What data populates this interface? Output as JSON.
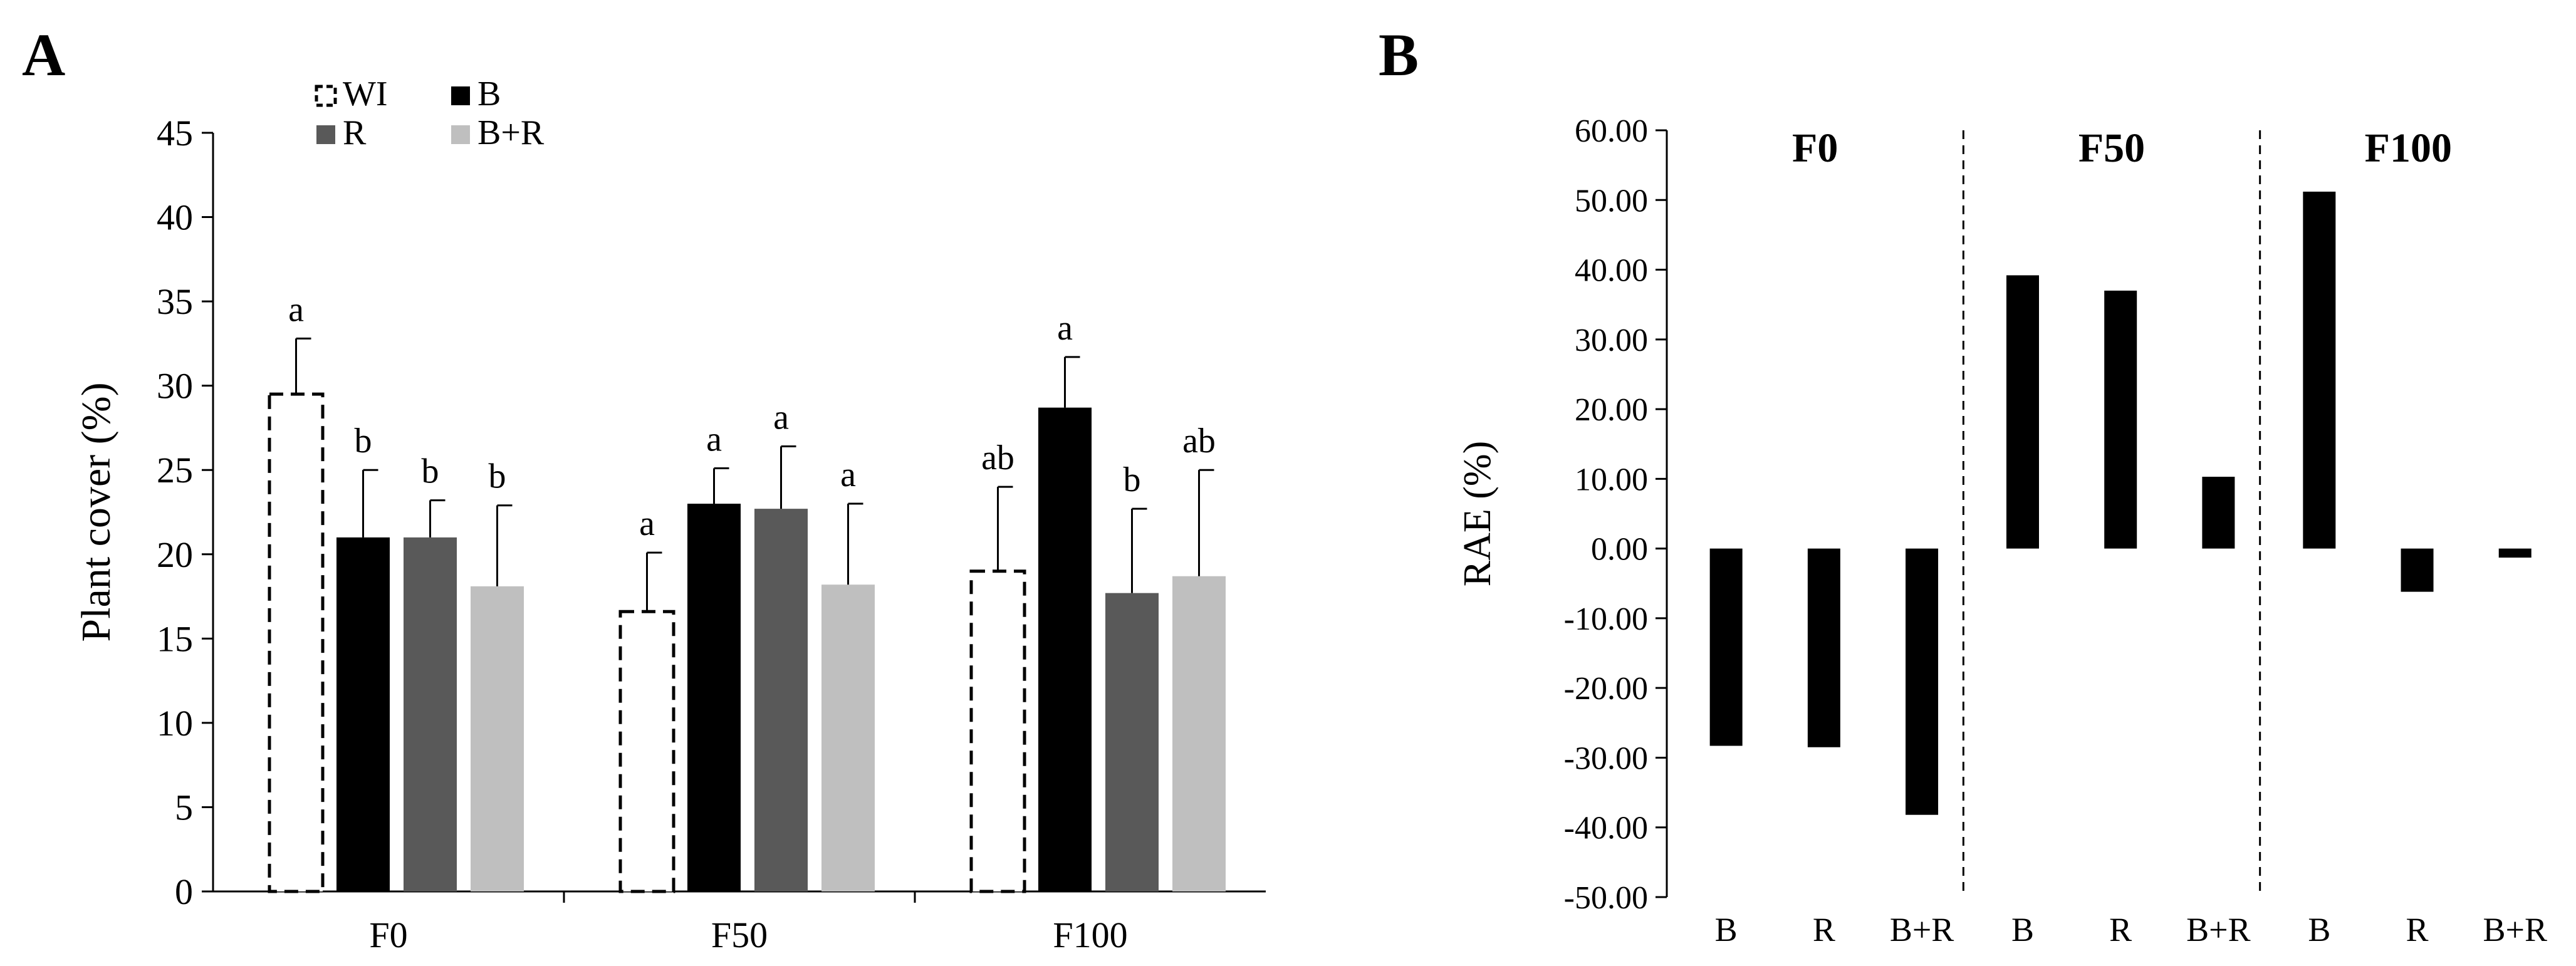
{
  "panel_labels": {
    "a": "A",
    "b": "B"
  },
  "colors": {
    "wi": "#ffffff",
    "b": "#000000",
    "r": "#595959",
    "br": "#bfbfbf",
    "axis": "#000000"
  },
  "chart_data": [
    {
      "id": "A",
      "type": "bar",
      "title": "",
      "ylabel": "Plant cover (%)",
      "xlabel": "",
      "ylim": [
        0,
        45
      ],
      "yticks": [
        "0",
        "5",
        "10",
        "15",
        "20",
        "25",
        "30",
        "35",
        "40",
        "45"
      ],
      "categories": [
        "F0",
        "F50",
        "F100"
      ],
      "legend": {
        "position": "top-left",
        "entries": [
          "WI",
          "B",
          "R",
          "B+R"
        ]
      },
      "series": [
        {
          "name": "WI",
          "values": [
            29.5,
            16.6,
            19.0
          ],
          "errors": [
            3.3,
            3.5,
            5.0
          ],
          "letters": [
            "a",
            "a",
            "ab"
          ]
        },
        {
          "name": "B",
          "values": [
            21.0,
            23.0,
            28.7
          ],
          "errors": [
            4.0,
            2.1,
            3.0
          ],
          "letters": [
            "b",
            "a",
            "a"
          ]
        },
        {
          "name": "R",
          "values": [
            21.0,
            22.7,
            17.7
          ],
          "errors": [
            2.2,
            3.7,
            5.0
          ],
          "letters": [
            "b",
            "a",
            "b"
          ]
        },
        {
          "name": "B+R",
          "values": [
            18.1,
            18.2,
            18.7
          ],
          "errors": [
            4.8,
            4.8,
            6.3
          ],
          "letters": [
            "b",
            "a",
            "ab"
          ]
        }
      ]
    },
    {
      "id": "B",
      "type": "bar",
      "title": "",
      "ylabel": "RAE (%)",
      "xlabel": "",
      "ylim": [
        -50,
        60
      ],
      "yticks": [
        "-50.00",
        "-40.00",
        "-30.00",
        "-20.00",
        "-10.00",
        "0.00",
        "10.00",
        "20.00",
        "30.00",
        "40.00",
        "50.00",
        "60.00"
      ],
      "groups": [
        {
          "name": "F0",
          "categories": [
            "B",
            "R",
            "B+R"
          ],
          "values": [
            -28.3,
            -28.5,
            -38.2
          ]
        },
        {
          "name": "F50",
          "categories": [
            "B",
            "R",
            "B+R"
          ],
          "values": [
            39.2,
            37.0,
            10.3
          ]
        },
        {
          "name": "F100",
          "categories": [
            "B",
            "R",
            "B+R"
          ],
          "values": [
            51.2,
            -6.2,
            -1.3
          ]
        }
      ]
    }
  ]
}
